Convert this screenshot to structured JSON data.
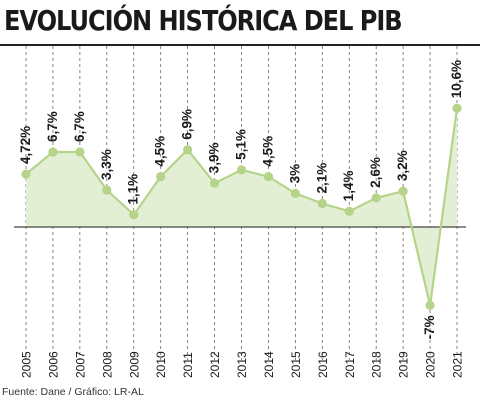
{
  "title": "EVOLUCIÓN HISTÓRICA DEL PIB",
  "source": "Fuente: Dane / Gráfico: LR-AL",
  "colors": {
    "line": "#b5d48a",
    "area": "#e3efd4",
    "dot": "#b5d48a",
    "grid": "#666666",
    "zero": "#444444",
    "text": "#1a1a1a"
  },
  "chart_data": {
    "type": "area",
    "x": [
      "2005",
      "2006",
      "2007",
      "2008",
      "2009",
      "2010",
      "2011",
      "2012",
      "2013",
      "2014",
      "2015",
      "2016",
      "2017",
      "2018",
      "2019",
      "2020",
      "2021"
    ],
    "values": [
      4.72,
      6.7,
      6.7,
      3.3,
      1.1,
      4.5,
      6.9,
      3.9,
      5.1,
      4.5,
      3.0,
      2.1,
      1.4,
      2.6,
      3.2,
      -7.0,
      10.6
    ],
    "data_labels": [
      "4,72%",
      "6,7%",
      "6,7%",
      "3,3%",
      "1,1%",
      "4,5%",
      "6,9%",
      "3,9%",
      "5,1%",
      "4,5%",
      "3%",
      "2,1%",
      "1,4%",
      "2,6%",
      "3,2%",
      "-7%",
      "10,6%"
    ],
    "ylim": [
      -9,
      12
    ],
    "grid": "vertical dashed",
    "legend": "none"
  }
}
